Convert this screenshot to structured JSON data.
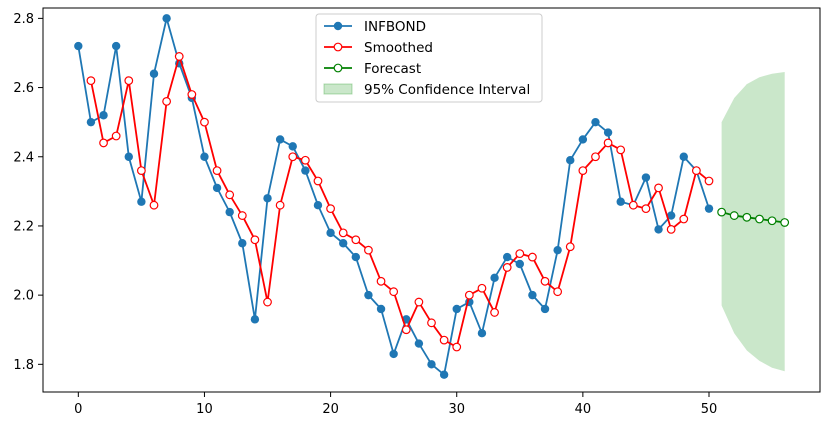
{
  "chart_data": {
    "type": "line",
    "title": "",
    "xlabel": "",
    "ylabel": "",
    "xlim": [
      -2.8,
      58.8
    ],
    "ylim": [
      1.72,
      2.83
    ],
    "x_ticks": [
      0,
      10,
      20,
      30,
      40,
      50
    ],
    "x_tick_labels": [
      "0",
      "10",
      "20",
      "30",
      "40",
      "50"
    ],
    "y_ticks": [
      1.8,
      2.0,
      2.2,
      2.4,
      2.6,
      2.8
    ],
    "y_tick_labels": [
      "1.8",
      "2.0",
      "2.2",
      "2.4",
      "2.6",
      "2.8"
    ],
    "grid": false,
    "legend_position": "top-center",
    "series": [
      {
        "name": "INFBOND",
        "color": "#1f77b4",
        "marker": "filled-circle",
        "x": [
          0,
          1,
          2,
          3,
          4,
          5,
          6,
          7,
          8,
          9,
          10,
          11,
          12,
          13,
          14,
          15,
          16,
          17,
          18,
          19,
          20,
          21,
          22,
          23,
          24,
          25,
          26,
          27,
          28,
          29,
          30,
          31,
          32,
          33,
          34,
          35,
          36,
          37,
          38,
          39,
          40,
          41,
          42,
          43,
          44,
          45,
          46,
          47,
          48,
          49,
          50
        ],
        "values": [
          2.72,
          2.5,
          2.52,
          2.72,
          2.4,
          2.27,
          2.64,
          2.8,
          2.67,
          2.57,
          2.4,
          2.31,
          2.24,
          2.15,
          1.93,
          2.28,
          2.45,
          2.43,
          2.36,
          2.26,
          2.18,
          2.15,
          2.11,
          2.0,
          1.96,
          1.83,
          1.93,
          1.86,
          1.8,
          1.77,
          1.96,
          1.98,
          1.89,
          2.05,
          2.11,
          2.09,
          2.0,
          1.96,
          2.13,
          2.39,
          2.45,
          2.5,
          2.47,
          2.27,
          2.26,
          2.34,
          2.19,
          2.23,
          2.4,
          2.36,
          2.25
        ]
      },
      {
        "name": "Smoothed",
        "color": "#ff0000",
        "marker": "open-circle",
        "x": [
          1,
          2,
          3,
          4,
          5,
          6,
          7,
          8,
          9,
          10,
          11,
          12,
          13,
          14,
          15,
          16,
          17,
          18,
          19,
          20,
          21,
          22,
          23,
          24,
          25,
          26,
          27,
          28,
          29,
          30,
          31,
          32,
          33,
          34,
          35,
          36,
          37,
          38,
          39,
          40,
          41,
          42,
          43,
          44,
          45,
          46,
          47,
          48,
          49,
          50
        ],
        "values": [
          2.62,
          2.44,
          2.46,
          2.62,
          2.36,
          2.26,
          2.56,
          2.69,
          2.58,
          2.5,
          2.36,
          2.29,
          2.23,
          2.16,
          1.98,
          2.26,
          2.4,
          2.39,
          2.33,
          2.25,
          2.18,
          2.16,
          2.13,
          2.04,
          2.01,
          1.9,
          1.98,
          1.92,
          1.87,
          1.85,
          2.0,
          2.02,
          1.95,
          2.08,
          2.12,
          2.11,
          2.04,
          2.01,
          2.14,
          2.36,
          2.4,
          2.44,
          2.42,
          2.26,
          2.25,
          2.31,
          2.19,
          2.22,
          2.36,
          2.33
        ]
      },
      {
        "name": "Forecast",
        "color": "#008000",
        "marker": "open-circle",
        "x": [
          51,
          52,
          53,
          54,
          55,
          56
        ],
        "values": [
          2.24,
          2.23,
          2.225,
          2.22,
          2.215,
          2.21
        ]
      }
    ],
    "confidence_interval": {
      "name": "95% Confidence Interval",
      "color": "#2ca02c",
      "x": [
        51,
        52,
        53,
        54,
        55,
        56
      ],
      "lower": [
        1.97,
        1.89,
        1.84,
        1.81,
        1.79,
        1.78
      ],
      "upper": [
        2.5,
        2.57,
        2.61,
        2.63,
        2.64,
        2.645
      ]
    }
  }
}
